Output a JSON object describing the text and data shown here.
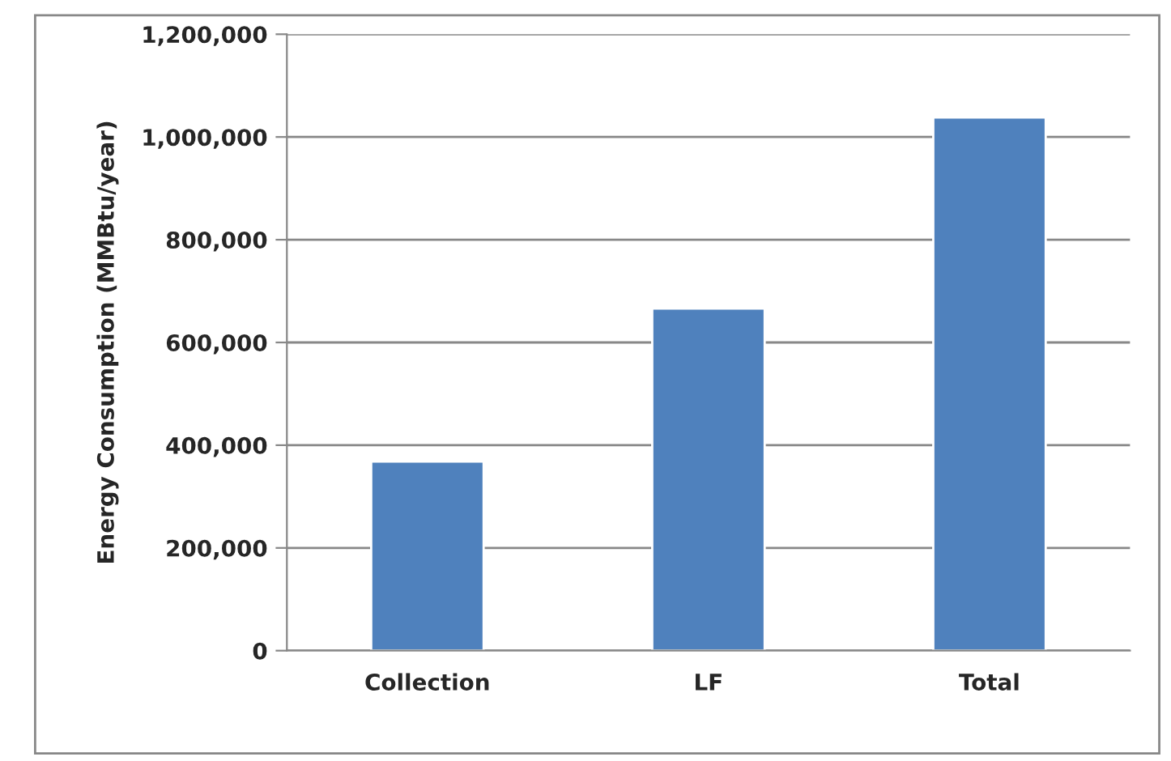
{
  "chart_data": {
    "type": "bar",
    "ylabel": "Energy Consumption (MMBtu/year)",
    "categories": [
      "Collection",
      "LF",
      "Total"
    ],
    "values": [
      368000,
      666000,
      1038000
    ],
    "color": "#4f81bd",
    "ylim": [
      0,
      1200000
    ],
    "yticks": [
      {
        "value": 0,
        "label": "0"
      },
      {
        "value": 200000,
        "label": "200,000"
      },
      {
        "value": 400000,
        "label": "400,000"
      },
      {
        "value": 600000,
        "label": "600,000"
      },
      {
        "value": 800000,
        "label": "800,000"
      },
      {
        "value": 1000000,
        "label": "1,000,000"
      },
      {
        "value": 1200000,
        "label": "1,200,000"
      }
    ],
    "grid": "y",
    "legend": false
  }
}
